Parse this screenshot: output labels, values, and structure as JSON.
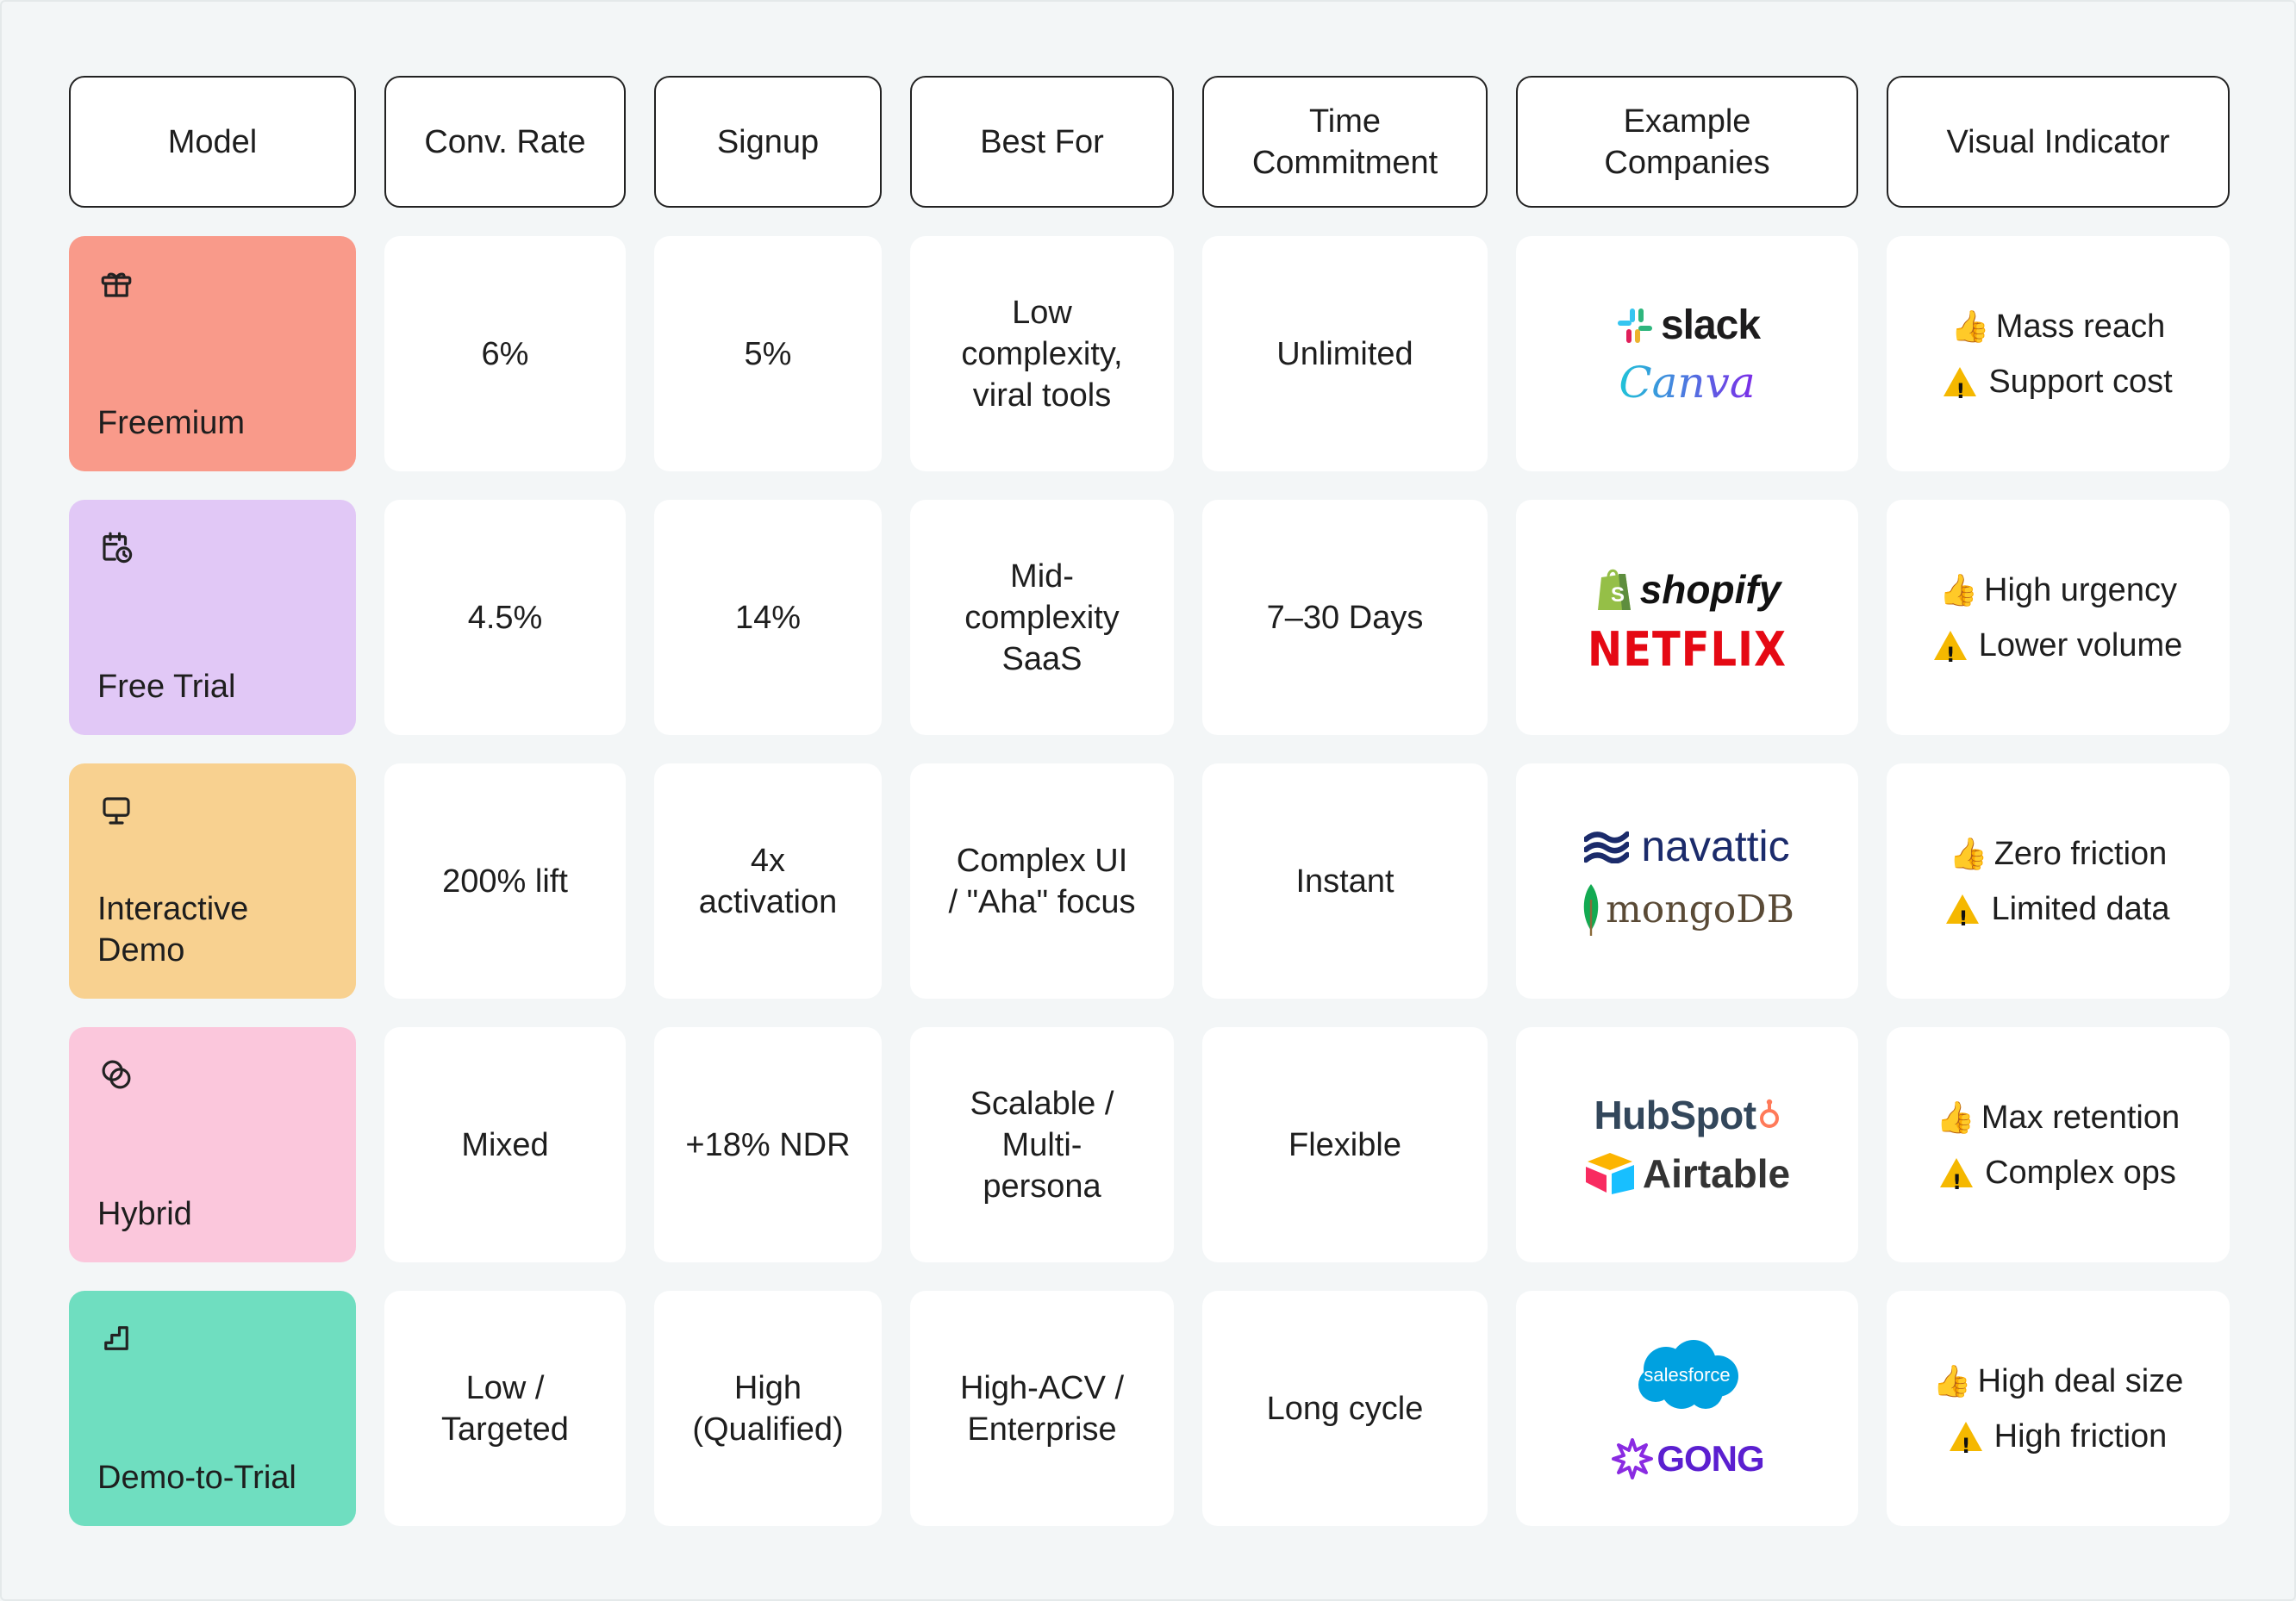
{
  "headers": [
    "Model",
    "Conv. Rate",
    "Signup",
    "Best For",
    "Time\nCommitment",
    "Example\nCompanies",
    "Visual Indicator"
  ],
  "rows": [
    {
      "model": "Freemium",
      "icon": "gift-icon",
      "color": "#f99a8a",
      "conv_rate": "6%",
      "signup": "5%",
      "best_for": "Low\ncomplexity,\nviral tools",
      "time": "Unlimited",
      "companies": [
        "slack",
        "Canva"
      ],
      "pro": "Mass reach",
      "con": "Support cost"
    },
    {
      "model": "Free Trial",
      "icon": "calendar-clock-icon",
      "color": "#e1c8f6",
      "conv_rate": "4.5%",
      "signup": "14%",
      "best_for": "Mid-\ncomplexity\nSaaS",
      "time": "7–30 Days",
      "companies": [
        "shopify",
        "NETFLIX"
      ],
      "pro": "High urgency",
      "con": "Lower volume"
    },
    {
      "model": "Interactive\nDemo",
      "icon": "monitor-icon",
      "color": "#f8d190",
      "conv_rate": "200% lift",
      "signup": "4x\nactivation",
      "best_for": "Complex UI\n/ \"Aha\" focus",
      "time": "Instant",
      "companies": [
        "navattic",
        "mongoDB"
      ],
      "pro": "Zero friction",
      "con": "Limited data"
    },
    {
      "model": "Hybrid",
      "icon": "overlap-circles-icon",
      "color": "#fbc7dc",
      "conv_rate": "Mixed",
      "signup": "+18% NDR",
      "best_for": "Scalable /\nMulti-\npersona",
      "time": "Flexible",
      "companies": [
        "HubSpot",
        "Airtable"
      ],
      "pro": "Max retention",
      "con": "Complex ops"
    },
    {
      "model": "Demo-to-Trial",
      "icon": "steps-icon",
      "color": "#6fdec0",
      "conv_rate": "Low /\nTargeted",
      "signup": "High\n(Qualified)",
      "best_for": "High-ACV /\nEnterprise",
      "time": "Long cycle",
      "companies": [
        "salesforce",
        "GONG"
      ],
      "pro": "High deal size",
      "con": "High friction"
    }
  ]
}
